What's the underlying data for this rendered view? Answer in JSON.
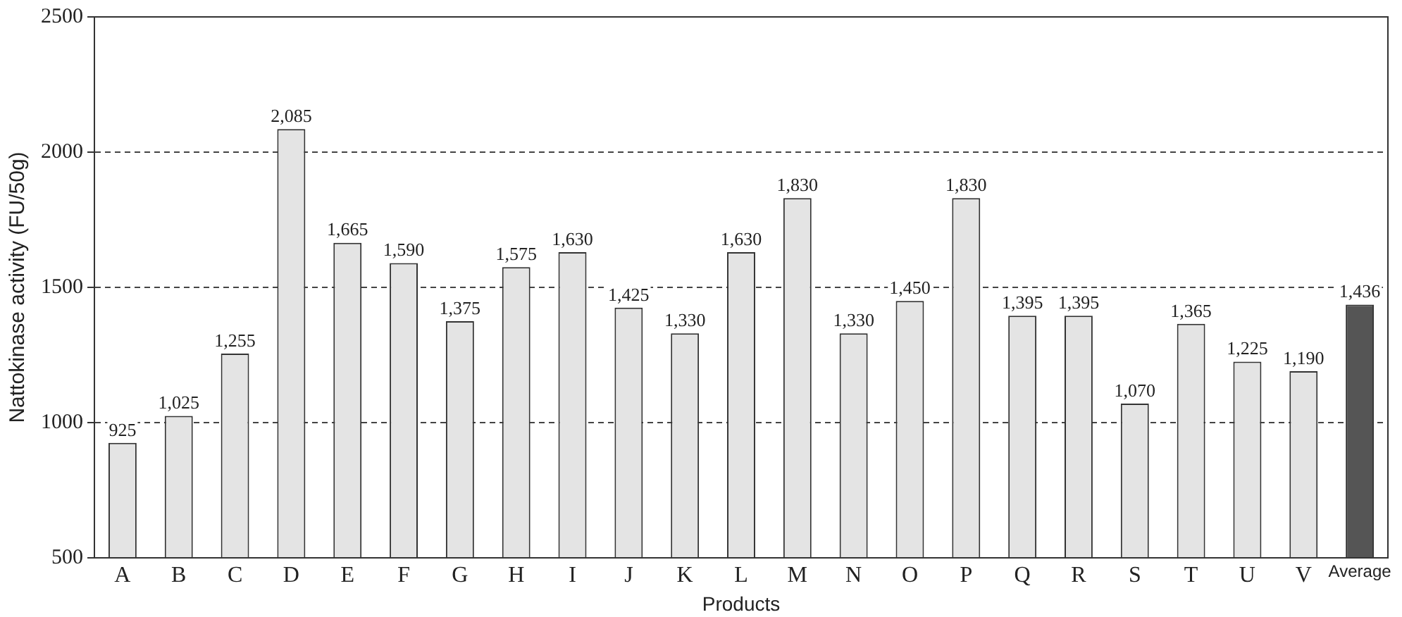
{
  "chart_data": {
    "type": "bar",
    "xlabel": "Products",
    "ylabel": "Nattokinase activity (FU/50g)",
    "categories": [
      "A",
      "B",
      "C",
      "D",
      "E",
      "F",
      "G",
      "H",
      "I",
      "J",
      "K",
      "L",
      "M",
      "N",
      "O",
      "P",
      "Q",
      "R",
      "S",
      "T",
      "U",
      "V",
      "Average"
    ],
    "values": [
      925,
      1025,
      1255,
      2085,
      1665,
      1590,
      1375,
      1575,
      1630,
      1425,
      1330,
      1630,
      1830,
      1330,
      1450,
      1830,
      1395,
      1395,
      1070,
      1365,
      1225,
      1190,
      1436
    ],
    "value_labels": [
      "925",
      "1,025",
      "1,255",
      "2,085",
      "1,665",
      "1,590",
      "1,375",
      "1,575",
      "1,630",
      "1,425",
      "1,330",
      "1,630",
      "1,830",
      "1,330",
      "1,450",
      "1,830",
      "1,395",
      "1,395",
      "1,070",
      "1,365",
      "1,225",
      "1,190",
      "1,436"
    ],
    "colors": [
      "#e4e4e4",
      "#e4e4e4",
      "#e4e4e4",
      "#e4e4e4",
      "#e4e4e4",
      "#e4e4e4",
      "#e4e4e4",
      "#e4e4e4",
      "#e4e4e4",
      "#e4e4e4",
      "#e4e4e4",
      "#e4e4e4",
      "#e4e4e4",
      "#e4e4e4",
      "#e4e4e4",
      "#e4e4e4",
      "#e4e4e4",
      "#e4e4e4",
      "#e4e4e4",
      "#e4e4e4",
      "#e4e4e4",
      "#e4e4e4",
      "#555555"
    ],
    "ylim": [
      500,
      2500
    ],
    "yticks": [
      500,
      1000,
      1500,
      2000,
      2500
    ],
    "grid": "y",
    "line_style": "dashed",
    "legend": false
  }
}
